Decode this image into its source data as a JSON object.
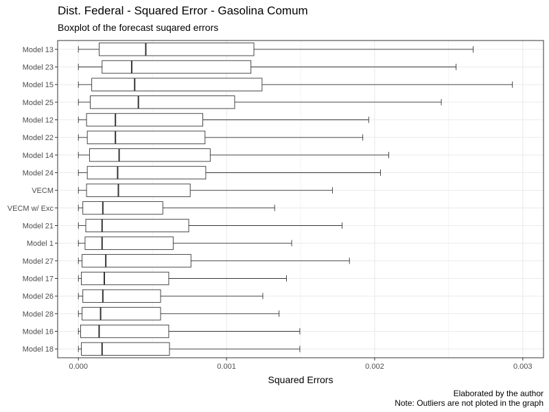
{
  "chart_data": {
    "type": "boxplot",
    "title": "Dist. Federal - Squared Error - Gasolina Comum",
    "subtitle": "Boxplot of the forecast suqared errors",
    "xlabel": "Squared Errors",
    "ylabel": "",
    "xlim": [
      -0.00014,
      0.00314
    ],
    "x_ticks": [
      0.0,
      0.001,
      0.002,
      0.003
    ],
    "x_tick_labels": [
      "0.000",
      "0.001",
      "0.002",
      "0.003"
    ],
    "grid": true,
    "legend": "none",
    "categories": [
      "Model 13",
      "Model 23",
      "Model 15",
      "Model 25",
      "Model 12",
      "Model 22",
      "Model 14",
      "Model 24",
      "VECM",
      "VECM w/ Exc",
      "Model 21",
      "Model 1",
      "Model 27",
      "Model 17",
      "Model 26",
      "Model 28",
      "Model 16",
      "Model 18"
    ],
    "boxes": [
      {
        "label": "Model 13",
        "min": 0.0,
        "q1": 0.00014,
        "median": 0.000455,
        "q3": 0.001185,
        "max": 0.002665
      },
      {
        "label": "Model 23",
        "min": 0.0,
        "q1": 0.00016,
        "median": 0.00036,
        "q3": 0.001165,
        "max": 0.00255
      },
      {
        "label": "Model 15",
        "min": 0.0,
        "q1": 9e-05,
        "median": 0.00038,
        "q3": 0.00124,
        "max": 0.00293
      },
      {
        "label": "Model 25",
        "min": 0.0,
        "q1": 8e-05,
        "median": 0.000405,
        "q3": 0.001055,
        "max": 0.00245
      },
      {
        "label": "Model 12",
        "min": 0.0,
        "q1": 5.5e-05,
        "median": 0.00025,
        "q3": 0.00084,
        "max": 0.00196
      },
      {
        "label": "Model 22",
        "min": 0.0,
        "q1": 6e-05,
        "median": 0.00025,
        "q3": 0.000855,
        "max": 0.00192
      },
      {
        "label": "Model 14",
        "min": 0.0,
        "q1": 7.5e-05,
        "median": 0.000275,
        "q3": 0.00089,
        "max": 0.002095
      },
      {
        "label": "Model 24",
        "min": 0.0,
        "q1": 6e-05,
        "median": 0.000265,
        "q3": 0.00086,
        "max": 0.00204
      },
      {
        "label": "VECM",
        "min": 0.0,
        "q1": 5.5e-05,
        "median": 0.00027,
        "q3": 0.000755,
        "max": 0.001715
      },
      {
        "label": "VECM w/ Exc",
        "min": 0.0,
        "q1": 3e-05,
        "median": 0.000165,
        "q3": 0.00057,
        "max": 0.001325
      },
      {
        "label": "Model 21",
        "min": 0.0,
        "q1": 5e-05,
        "median": 0.00016,
        "q3": 0.000745,
        "max": 0.00178
      },
      {
        "label": "Model 1",
        "min": 0.0,
        "q1": 4.5e-05,
        "median": 0.00016,
        "q3": 0.00064,
        "max": 0.00144
      },
      {
        "label": "Model 27",
        "min": 0.0,
        "q1": 2.5e-05,
        "median": 0.000185,
        "q3": 0.00076,
        "max": 0.00183
      },
      {
        "label": "Model 17",
        "min": 0.0,
        "q1": 2e-05,
        "median": 0.000175,
        "q3": 0.00061,
        "max": 0.001405
      },
      {
        "label": "Model 26",
        "min": 0.0,
        "q1": 3e-05,
        "median": 0.000165,
        "q3": 0.000555,
        "max": 0.001245
      },
      {
        "label": "Model 28",
        "min": 0.0,
        "q1": 2.5e-05,
        "median": 0.00015,
        "q3": 0.000555,
        "max": 0.001355
      },
      {
        "label": "Model 16",
        "min": 0.0,
        "q1": 1.5e-05,
        "median": 0.00014,
        "q3": 0.00061,
        "max": 0.001495
      },
      {
        "label": "Model 18",
        "min": 0.0,
        "q1": 2e-05,
        "median": 0.00016,
        "q3": 0.000615,
        "max": 0.001495
      }
    ]
  },
  "caption": {
    "line1": "Elaborated by the author",
    "line2": "Note: Outliers are not ploted in the graph"
  },
  "colors": {
    "panel_border": "#333333",
    "grid": "#ebebeb",
    "box_fill": "#ffffff",
    "box_stroke": "#333333",
    "axis_text": "#4d4d4d"
  }
}
